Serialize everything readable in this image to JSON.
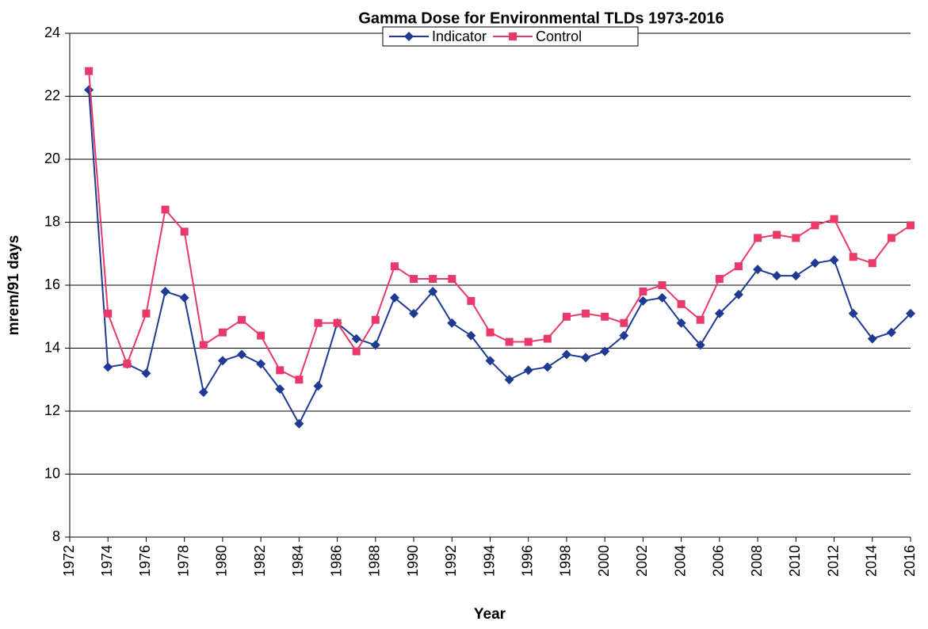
{
  "chart_data": {
    "type": "line",
    "title": "Gamma Dose for Environmental TLDs 1973-2016",
    "x_label": "Year",
    "y_label": "mrem/91 days",
    "x": [
      1973,
      1974,
      1975,
      1976,
      1977,
      1978,
      1979,
      1980,
      1981,
      1982,
      1983,
      1984,
      1985,
      1986,
      1987,
      1988,
      1989,
      1990,
      1991,
      1992,
      1993,
      1994,
      1995,
      1996,
      1997,
      1998,
      1999,
      2000,
      2001,
      2002,
      2003,
      2004,
      2005,
      2006,
      2007,
      2008,
      2009,
      2010,
      2011,
      2012,
      2013,
      2014,
      2015,
      2016
    ],
    "series": [
      {
        "name": "Indicator",
        "color": "#1f3a93",
        "marker": "diamond",
        "values": [
          22.2,
          13.4,
          13.5,
          13.2,
          15.8,
          15.6,
          12.6,
          13.6,
          13.8,
          13.5,
          12.7,
          11.6,
          12.8,
          14.8,
          14.3,
          14.1,
          15.6,
          15.1,
          15.8,
          14.8,
          14.4,
          13.6,
          13.0,
          13.3,
          13.4,
          13.8,
          13.7,
          13.9,
          14.4,
          15.5,
          15.6,
          14.8,
          14.1,
          15.1,
          15.7,
          16.5,
          16.3,
          16.3,
          16.7,
          16.8,
          15.1,
          14.3,
          14.5,
          15.1
        ]
      },
      {
        "name": "Control",
        "color": "#e8396a",
        "marker": "square",
        "values": [
          22.8,
          15.1,
          13.5,
          15.1,
          18.4,
          17.7,
          14.1,
          14.5,
          14.9,
          14.4,
          13.3,
          13.0,
          14.8,
          14.8,
          13.9,
          14.9,
          16.6,
          16.2,
          16.2,
          16.2,
          15.5,
          14.5,
          14.2,
          14.2,
          14.3,
          15.0,
          15.1,
          15.0,
          14.8,
          15.8,
          16.0,
          15.4,
          14.9,
          16.2,
          16.6,
          17.5,
          17.6,
          17.5,
          17.9,
          18.1,
          16.9,
          16.7,
          17.5,
          17.9
        ]
      }
    ],
    "xlim": [
      1972,
      2016
    ],
    "xticks": [
      1972,
      1974,
      1976,
      1978,
      1980,
      1982,
      1984,
      1986,
      1988,
      1990,
      1992,
      1994,
      1996,
      1998,
      2000,
      2002,
      2004,
      2006,
      2008,
      2010,
      2012,
      2014,
      2016
    ],
    "ylim": [
      8,
      24
    ],
    "yticks": [
      8,
      10,
      12,
      14,
      16,
      18,
      20,
      22,
      24
    ],
    "grid": true,
    "legend": "top"
  }
}
